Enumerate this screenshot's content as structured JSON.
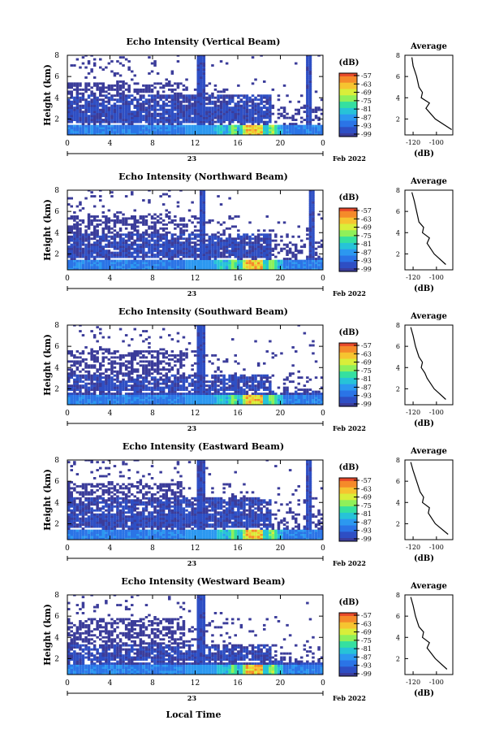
{
  "common": {
    "height_label": "Height (km)",
    "y_ticks": [
      "2",
      "4",
      "6",
      "8"
    ],
    "x_ticks": [
      "0",
      "4",
      "8",
      "12",
      "16",
      "20",
      "0"
    ],
    "day_label": "23",
    "date_label": "Feb 2022",
    "cb_unit": "(dB)",
    "cb_ticks": [
      "-57",
      "-63",
      "-69",
      "-75",
      "-81",
      "-87",
      "-93",
      "-99"
    ],
    "avg_title": "Average",
    "avg_xlabel": "(dB)",
    "avg_x_ticks": [
      "-120",
      "-100"
    ],
    "avg_y_ticks": [
      "2",
      "4",
      "6",
      "8"
    ],
    "x_axis_title": "Local Time",
    "colorscale": [
      "#3b3c9a",
      "#2e4fc4",
      "#2b74e6",
      "#2c98f0",
      "#27c3d8",
      "#35e0a0",
      "#8ff05a",
      "#d9ee3a",
      "#f6c430",
      "#f58a2a",
      "#e8492a"
    ],
    "no_echo_color": "#ffffff"
  },
  "chart_data": [
    {
      "type": "heatmap",
      "title": "Echo Intensity (Vertical Beam)",
      "xlabel": "",
      "ylabel": "Height (km)",
      "xlim": [
        0,
        24
      ],
      "ylim": [
        0.5,
        8
      ],
      "clim": [
        -99,
        -54
      ],
      "layers": {
        "low_top_km": 3.0,
        "strong_top_km": 1.3,
        "mid_top_km": 4.3,
        "cloud_top_km": 5.3
      },
      "gaps_hours": [
        [
          12.0,
          12.8
        ],
        [
          22.2,
          22.9
        ]
      ],
      "precip_peak_hour": 17.5,
      "average_profile": {
        "heights_km": [
          1,
          2,
          3,
          3.5,
          4,
          4.5,
          5,
          6,
          7,
          7.8
        ],
        "values_db": [
          -87,
          -101,
          -109,
          -106,
          -113,
          -112,
          -115,
          -117,
          -120,
          -121
        ]
      }
    },
    {
      "type": "heatmap",
      "title": "Echo Intensity (Northward Beam)",
      "xlabel": "",
      "ylabel": "Height (km)",
      "xlim": [
        0,
        24
      ],
      "ylim": [
        0.5,
        8
      ],
      "clim": [
        -99,
        -54
      ],
      "layers": {
        "low_top_km": 2.9,
        "strong_top_km": 1.3,
        "mid_top_km": 3.8,
        "cloud_top_km": 5.6
      },
      "gaps_hours": [
        [
          12.2,
          12.9
        ],
        [
          22.5,
          23.0
        ]
      ],
      "precip_peak_hour": 17.5,
      "average_profile": {
        "heights_km": [
          1,
          2,
          3,
          3.5,
          4,
          4.5,
          5,
          6,
          7,
          7.8
        ],
        "values_db": [
          -92,
          -102,
          -108,
          -106,
          -112,
          -111,
          -115,
          -117,
          -119,
          -121
        ]
      }
    },
    {
      "type": "heatmap",
      "title": "Echo Intensity (Southward Beam)",
      "xlabel": "",
      "ylabel": "Height (km)",
      "xlim": [
        0,
        24
      ],
      "ylim": [
        0.5,
        8
      ],
      "clim": [
        -99,
        -54
      ],
      "layers": {
        "low_top_km": 2.2,
        "strong_top_km": 1.4,
        "mid_top_km": 3.3,
        "cloud_top_km": 5.6
      },
      "gaps_hours": [
        [
          12.1,
          12.8
        ]
      ],
      "precip_peak_hour": 17.5,
      "average_profile": {
        "heights_km": [
          1,
          2,
          3,
          3.5,
          4,
          4.5,
          5,
          6,
          7,
          7.8
        ],
        "values_db": [
          -92,
          -102,
          -108,
          -110,
          -113,
          -112,
          -115,
          -118,
          -120,
          -122
        ]
      }
    },
    {
      "type": "heatmap",
      "title": "Echo Intensity (Eastward Beam)",
      "xlabel": "",
      "ylabel": "Height (km)",
      "xlim": [
        0,
        24
      ],
      "ylim": [
        0.5,
        8
      ],
      "clim": [
        -99,
        -54
      ],
      "layers": {
        "low_top_km": 2.9,
        "strong_top_km": 1.3,
        "mid_top_km": 4.4,
        "cloud_top_km": 5.8
      },
      "gaps_hours": [
        [
          12.0,
          12.8
        ],
        [
          22.4,
          22.9
        ]
      ],
      "precip_peak_hour": 17.5,
      "average_profile": {
        "heights_km": [
          1,
          2,
          3,
          3.5,
          4,
          4.5,
          5,
          6,
          7,
          7.8
        ],
        "values_db": [
          -90,
          -101,
          -107,
          -106,
          -112,
          -111,
          -114,
          -117,
          -120,
          -122
        ]
      }
    },
    {
      "type": "heatmap",
      "title": "Echo Intensity (Westward Beam)",
      "xlabel": "Local Time",
      "ylabel": "Height (km)",
      "xlim": [
        0,
        24
      ],
      "ylim": [
        0.5,
        8
      ],
      "clim": [
        -99,
        -54
      ],
      "layers": {
        "low_top_km": 2.2,
        "strong_top_km": 1.4,
        "mid_top_km": 3.2,
        "cloud_top_km": 5.8
      },
      "gaps_hours": [
        [
          12.1,
          12.9
        ]
      ],
      "precip_peak_hour": 17.5,
      "average_profile": {
        "heights_km": [
          1,
          2,
          3,
          3.5,
          4,
          4.5,
          5,
          6,
          7,
          7.8
        ],
        "values_db": [
          -91,
          -101,
          -108,
          -106,
          -112,
          -111,
          -115,
          -118,
          -120,
          -122
        ]
      }
    }
  ]
}
